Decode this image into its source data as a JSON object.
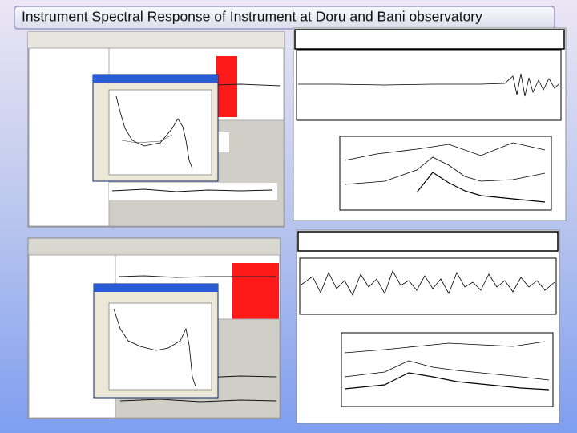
{
  "title": "Instrument Spectral Response of Instrument at Doru and Bani observatory"
}
